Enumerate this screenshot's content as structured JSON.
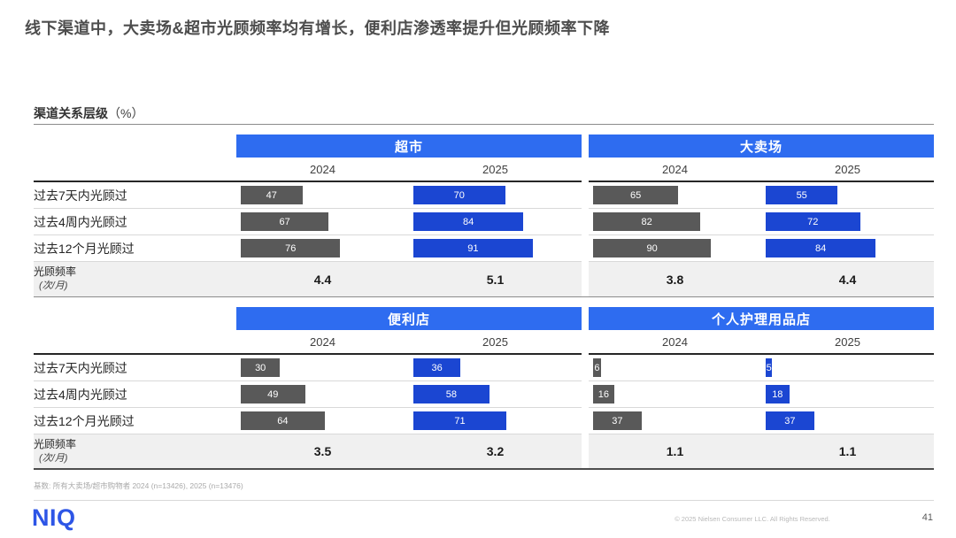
{
  "title": "线下渠道中，大卖场&超市光顾频率均有增长，便利店渗透率提升但光顾频率下降",
  "section": {
    "label": "渠道关系层级",
    "unit": "（%）"
  },
  "years": [
    "2024",
    "2025"
  ],
  "row_labels": [
    "过去7天内光顾过",
    "过去4周内光顾过",
    "过去12个月光顾过"
  ],
  "frequency_label": "光顾频率",
  "frequency_unit": "(次/月)",
  "colors": {
    "header_band_blue": "#2e6cf0",
    "bar_blue": "#1b46d2",
    "bar_gray": "#595959",
    "frequency_row_bg": "#f0f0f0",
    "logo_blue": "#2d55e6"
  },
  "chart_data": [
    {
      "type": "bar",
      "title": "超市",
      "categories": [
        "过去7天内光顾过",
        "过去4周内光顾过",
        "过去12个月光顾过"
      ],
      "series": [
        {
          "name": "2024",
          "values": [
            47,
            67,
            76
          ]
        },
        {
          "name": "2025",
          "values": [
            70,
            84,
            91
          ]
        }
      ],
      "frequencies": [
        "4.4",
        "5.1"
      ],
      "xlim": [
        0,
        100
      ],
      "unit": "%"
    },
    {
      "type": "bar",
      "title": "大卖场",
      "categories": [
        "过去7天内光顾过",
        "过去4周内光顾过",
        "过去12个月光顾过"
      ],
      "series": [
        {
          "name": "2024",
          "values": [
            65,
            82,
            90
          ]
        },
        {
          "name": "2025",
          "values": [
            55,
            72,
            84
          ]
        }
      ],
      "frequencies": [
        "3.8",
        "4.4"
      ],
      "xlim": [
        0,
        100
      ],
      "unit": "%"
    },
    {
      "type": "bar",
      "title": "便利店",
      "categories": [
        "过去7天内光顾过",
        "过去4周内光顾过",
        "过去12个月光顾过"
      ],
      "series": [
        {
          "name": "2024",
          "values": [
            30,
            49,
            64
          ]
        },
        {
          "name": "2025",
          "values": [
            36,
            58,
            71
          ]
        }
      ],
      "frequencies": [
        "3.5",
        "3.2"
      ],
      "xlim": [
        0,
        100
      ],
      "unit": "%"
    },
    {
      "type": "bar",
      "title": "个人护理用品店",
      "categories": [
        "过去7天内光顾过",
        "过去4周内光顾过",
        "过去12个月光顾过"
      ],
      "series": [
        {
          "name": "2024",
          "values": [
            6,
            16,
            37
          ]
        },
        {
          "name": "2025",
          "values": [
            5,
            18,
            37
          ]
        }
      ],
      "frequencies": [
        "1.1",
        "1.1"
      ],
      "xlim": [
        0,
        100
      ],
      "unit": "%"
    }
  ],
  "footer": {
    "note": "基数: 所有大卖场/超市购物者 2024 (n=13426), 2025 (n=13476)",
    "logo": "NIQ",
    "copyright": "© 2025 Nielsen Consumer LLC. All Rights Reserved.",
    "page": "41"
  }
}
